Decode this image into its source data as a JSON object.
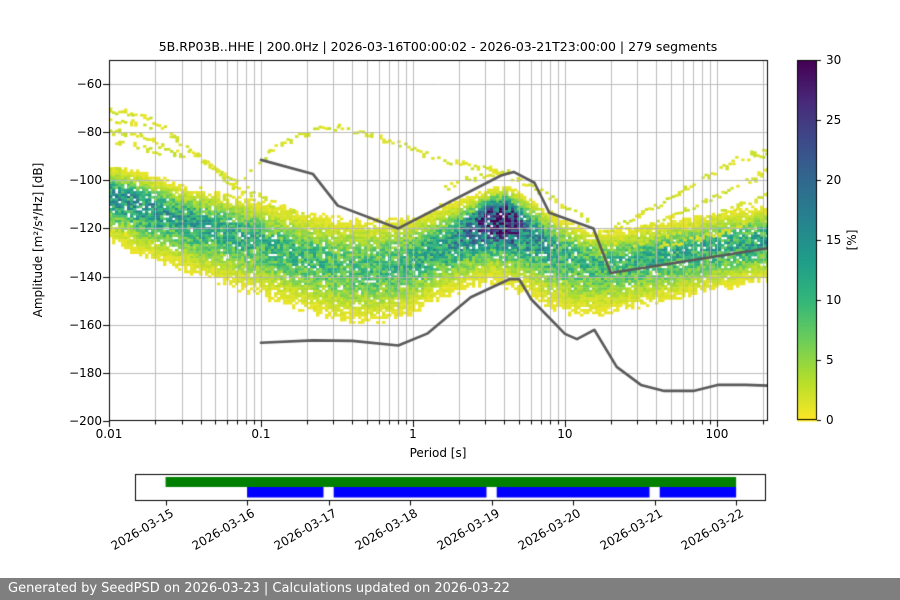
{
  "header": {
    "title": "5B.RP03B..HHE | 200.0Hz | 2026-03-16T00:00:02 - 2026-03-21T23:00:00 | 279 segments"
  },
  "axes": {
    "xlabel": "Period [s]",
    "ylabel": "Amplitude [m²/s⁴/Hz] [dB]",
    "x_ticks": [
      {
        "value": 0.01,
        "label": "0.01"
      },
      {
        "value": 0.1,
        "label": "0.1"
      },
      {
        "value": 1,
        "label": "1"
      },
      {
        "value": 10,
        "label": "10"
      },
      {
        "value": 100,
        "label": "100"
      }
    ],
    "y_ticks": [
      {
        "value": -60,
        "label": "−60"
      },
      {
        "value": -80,
        "label": "−80"
      },
      {
        "value": -100,
        "label": "−100"
      },
      {
        "value": -120,
        "label": "−120"
      },
      {
        "value": -140,
        "label": "−140"
      },
      {
        "value": -160,
        "label": "−160"
      },
      {
        "value": -180,
        "label": "−180"
      },
      {
        "value": -200,
        "label": "−200"
      }
    ],
    "xlim": [
      0.01,
      216
    ],
    "ylim": [
      -200,
      -50
    ]
  },
  "colorbar": {
    "label": "[%]",
    "min": 0,
    "max": 30,
    "ticks": [
      {
        "value": 0,
        "label": "0"
      },
      {
        "value": 5,
        "label": "5"
      },
      {
        "value": 10,
        "label": "10"
      },
      {
        "value": 15,
        "label": "15"
      },
      {
        "value": 20,
        "label": "20"
      },
      {
        "value": 25,
        "label": "25"
      },
      {
        "value": 30,
        "label": "30"
      }
    ],
    "viridis_stops": [
      [
        0.0,
        "#440154"
      ],
      [
        0.11,
        "#482878"
      ],
      [
        0.22,
        "#3e4a89"
      ],
      [
        0.33,
        "#31688e"
      ],
      [
        0.44,
        "#26828e"
      ],
      [
        0.56,
        "#1f9e89"
      ],
      [
        0.67,
        "#35b779"
      ],
      [
        0.78,
        "#6ece58"
      ],
      [
        0.89,
        "#b5de2b"
      ],
      [
        1.0,
        "#fde725"
      ]
    ]
  },
  "chart_data": {
    "type": "heatmap",
    "title": "5B.RP03B..HHE | 200.0Hz | 2026-03-16T00:00:02 - 2026-03-21T23:00:00 | 279 segments",
    "xlabel": "Period [s]",
    "ylabel": "Amplitude [m²/s⁴/Hz] [dB]",
    "x_scale": "log",
    "xlim": [
      0.01,
      216
    ],
    "ylim": [
      -200,
      -50
    ],
    "grid": true,
    "colormap": "viridis_r",
    "cbar_label": "[%]",
    "cbar_range": [
      0,
      30
    ],
    "main_band": [
      {
        "period": 0.01,
        "center": -106,
        "sigma_up": 5,
        "sigma_dn": 8,
        "peak_pct": 13
      },
      {
        "period": 0.016,
        "center": -110,
        "sigma_up": 5.5,
        "sigma_dn": 8.5,
        "peak_pct": 14
      },
      {
        "period": 0.03,
        "center": -116,
        "sigma_up": 6,
        "sigma_dn": 9,
        "peak_pct": 12
      },
      {
        "period": 0.06,
        "center": -121,
        "sigma_up": 6.5,
        "sigma_dn": 9.5,
        "peak_pct": 11
      },
      {
        "period": 0.1,
        "center": -125,
        "sigma_up": 7,
        "sigma_dn": 10,
        "peak_pct": 10
      },
      {
        "period": 0.2,
        "center": -132,
        "sigma_up": 8,
        "sigma_dn": 10,
        "peak_pct": 9
      },
      {
        "period": 0.35,
        "center": -136,
        "sigma_up": 9,
        "sigma_dn": 10,
        "peak_pct": 8.5
      },
      {
        "period": 0.6,
        "center": -137,
        "sigma_up": 9,
        "sigma_dn": 9.5,
        "peak_pct": 9
      },
      {
        "period": 1.0,
        "center": -133,
        "sigma_up": 8,
        "sigma_dn": 9.5,
        "peak_pct": 10
      },
      {
        "period": 1.6,
        "center": -127,
        "sigma_up": 7,
        "sigma_dn": 9,
        "peak_pct": 12
      },
      {
        "period": 2.5,
        "center": -119,
        "sigma_up": 5,
        "sigma_dn": 10,
        "peak_pct": 18
      },
      {
        "period": 3.2,
        "center": -115,
        "sigma_up": 4.5,
        "sigma_dn": 10,
        "peak_pct": 26
      },
      {
        "period": 4.2,
        "center": -114.5,
        "sigma_up": 4.5,
        "sigma_dn": 11,
        "peak_pct": 27
      },
      {
        "period": 5.5,
        "center": -119,
        "sigma_up": 5,
        "sigma_dn": 11,
        "peak_pct": 17
      },
      {
        "period": 8,
        "center": -127,
        "sigma_up": 6,
        "sigma_dn": 11,
        "peak_pct": 11
      },
      {
        "period": 12,
        "center": -133,
        "sigma_up": 6,
        "sigma_dn": 10,
        "peak_pct": 9.5
      },
      {
        "period": 18,
        "center": -135,
        "sigma_up": 6,
        "sigma_dn": 9,
        "peak_pct": 9
      },
      {
        "period": 30,
        "center": -133,
        "sigma_up": 6,
        "sigma_dn": 8.5,
        "peak_pct": 10
      },
      {
        "period": 60,
        "center": -130,
        "sigma_up": 6,
        "sigma_dn": 8,
        "peak_pct": 11
      },
      {
        "period": 120,
        "center": -127,
        "sigma_up": 6,
        "sigma_dn": 7.5,
        "peak_pct": 11
      },
      {
        "period": 216,
        "center": -125,
        "sigma_up": 6,
        "sigma_dn": 7,
        "peak_pct": 12
      }
    ],
    "outlier_streaks": [
      [
        [
          0.01,
          -71
        ],
        [
          0.014,
          -72.5
        ],
        [
          0.02,
          -76
        ],
        [
          0.028,
          -82
        ]
      ],
      [
        [
          0.01,
          -74.5
        ],
        [
          0.014,
          -76
        ],
        [
          0.019,
          -79
        ]
      ],
      [
        [
          0.01,
          -79.5
        ],
        [
          0.016,
          -81
        ],
        [
          0.022,
          -86
        ],
        [
          0.032,
          -90.5
        ]
      ],
      [
        [
          0.011,
          -84.5
        ],
        [
          0.016,
          -86
        ],
        [
          0.022,
          -90
        ]
      ],
      [
        [
          0.025,
          -82
        ],
        [
          0.045,
          -94
        ],
        [
          0.08,
          -104
        ],
        [
          0.14,
          -112
        ],
        [
          0.25,
          -118
        ],
        [
          0.4,
          -121
        ]
      ],
      [
        [
          0.032,
          -86
        ],
        [
          0.056,
          -99
        ],
        [
          0.09,
          -108
        ],
        [
          0.126,
          -113
        ]
      ],
      [
        [
          0.056,
          -108
        ],
        [
          0.08,
          -98
        ],
        [
          0.112,
          -88
        ],
        [
          0.16,
          -82
        ],
        [
          0.24,
          -78.5
        ],
        [
          0.32,
          -78
        ],
        [
          0.5,
          -80.5
        ],
        [
          0.8,
          -85
        ],
        [
          1.26,
          -89.5
        ],
        [
          2.0,
          -93.5
        ],
        [
          3.16,
          -96
        ],
        [
          4.5,
          -97.5
        ]
      ],
      [
        [
          1.6,
          -103
        ],
        [
          2.5,
          -99
        ],
        [
          3.5,
          -96.8
        ],
        [
          5.0,
          -100
        ],
        [
          7.1,
          -105
        ],
        [
          10,
          -111
        ],
        [
          14,
          -117
        ]
      ],
      [
        [
          16,
          -123
        ],
        [
          32,
          -114
        ],
        [
          63,
          -103
        ],
        [
          126,
          -92
        ],
        [
          216,
          -87.5
        ]
      ],
      [
        [
          20,
          -126
        ],
        [
          40,
          -118
        ],
        [
          89,
          -108
        ],
        [
          216,
          -96
        ]
      ],
      [
        [
          28,
          -127
        ],
        [
          56,
          -121
        ],
        [
          112,
          -113
        ],
        [
          216,
          -105
        ]
      ],
      [
        [
          40,
          -128
        ],
        [
          89,
          -123
        ],
        [
          178,
          -116
        ],
        [
          216,
          -113
        ]
      ],
      [
        [
          0.01,
          -95
        ],
        [
          0.0126,
          -96
        ]
      ],
      [
        [
          0.01,
          -121
        ],
        [
          0.0132,
          -122
        ]
      ],
      [
        [
          158,
          -91
        ],
        [
          216,
          -89
        ]
      ]
    ],
    "noise_models": {
      "high": [
        [
          0.1,
          -91.5
        ],
        [
          0.22,
          -97.4
        ],
        [
          0.32,
          -110.5
        ],
        [
          0.8,
          -120
        ],
        [
          3.8,
          -98
        ],
        [
          4.6,
          -96.5
        ],
        [
          6.3,
          -101
        ],
        [
          7.9,
          -113.5
        ],
        [
          15.4,
          -120
        ],
        [
          20,
          -138.5
        ],
        [
          216,
          -128.2
        ]
      ],
      "low": [
        [
          0.1,
          -167.5
        ],
        [
          0.22,
          -166.5
        ],
        [
          0.4,
          -166.7
        ],
        [
          0.8,
          -168.6
        ],
        [
          1.24,
          -163.7
        ],
        [
          2.4,
          -148.6
        ],
        [
          4.3,
          -141.1
        ],
        [
          5,
          -141.1
        ],
        [
          6,
          -149.4
        ],
        [
          10,
          -163.8
        ],
        [
          12,
          -166
        ],
        [
          15.6,
          -162.1
        ],
        [
          21.9,
          -177.5
        ],
        [
          31.6,
          -185
        ],
        [
          45,
          -187.5
        ],
        [
          70,
          -187.5
        ],
        [
          101,
          -185
        ],
        [
          154,
          -185
        ],
        [
          216,
          -185.3
        ]
      ]
    }
  },
  "timeline": {
    "range": {
      "start": "2026-03-14T15:00:00Z",
      "end": "2026-03-22T08:30:00Z"
    },
    "day_ticks": [
      "2026-03-15",
      "2026-03-16",
      "2026-03-17",
      "2026-03-18",
      "2026-03-19",
      "2026-03-20",
      "2026-03-21",
      "2026-03-22"
    ],
    "green_span": {
      "start": "2026-03-15T00:00:00Z",
      "end": "2026-03-22T00:00:00Z"
    },
    "green_color": "#008000",
    "blue_segments": [
      [
        "2026-03-16T00:00:00Z",
        "2026-03-16T22:30:00Z"
      ],
      [
        "2026-03-17T01:30:00Z",
        "2026-03-18T22:30:00Z"
      ],
      [
        "2026-03-19T01:30:00Z",
        "2026-03-20T22:30:00Z"
      ],
      [
        "2026-03-21T01:30:00Z",
        "2026-03-22T00:00:00Z"
      ]
    ],
    "blue_color": "#0000ff"
  },
  "footer": {
    "text": "Generated by SeedPSD on 2026-03-23 | Calculations updated on 2026-03-22",
    "bg_color": "#7f7f7f"
  }
}
